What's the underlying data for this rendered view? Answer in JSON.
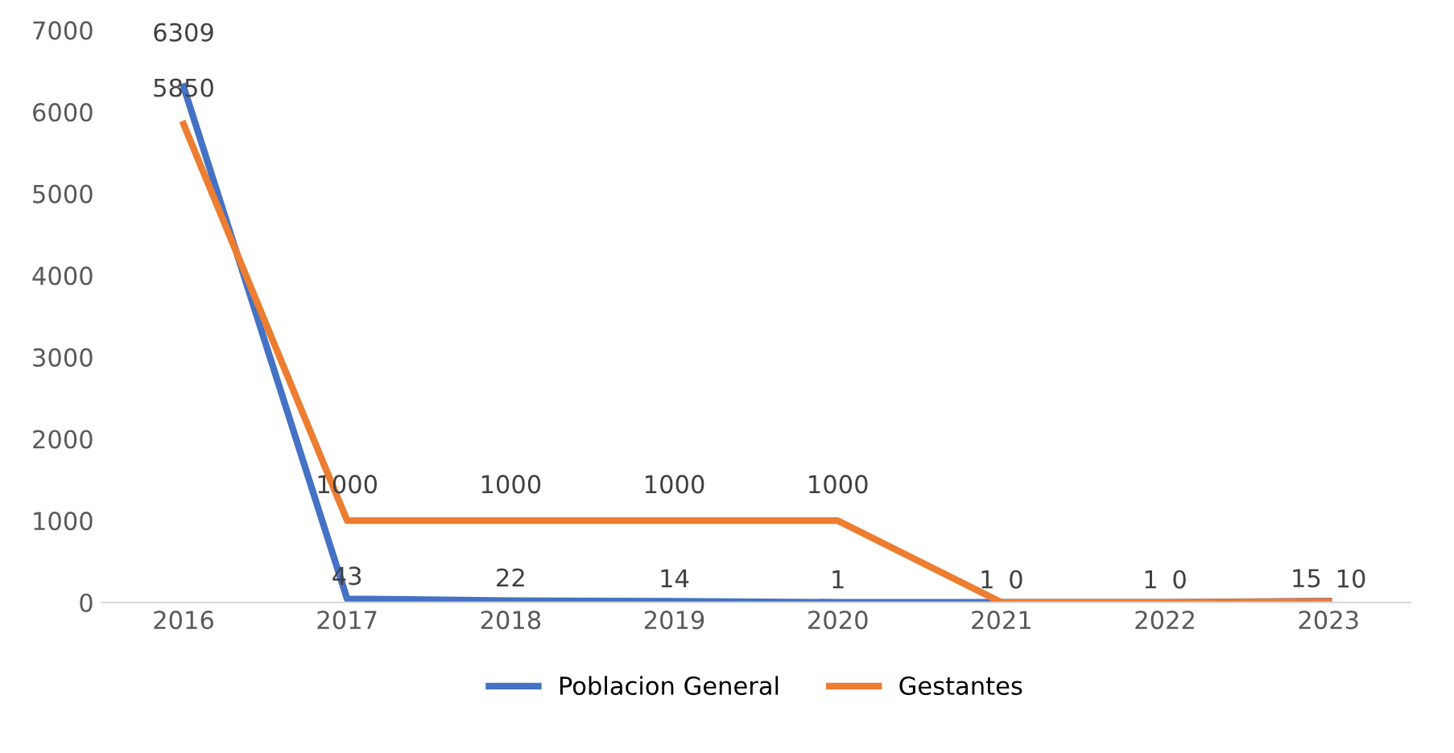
{
  "chart_data": {
    "type": "line",
    "categories": [
      "2016",
      "2017",
      "2018",
      "2019",
      "2020",
      "2021",
      "2022",
      "2023"
    ],
    "series": [
      {
        "name": "Poblacion General",
        "color": "#4472c4",
        "values": [
          6309,
          43,
          22,
          14,
          1,
          1,
          1,
          15
        ]
      },
      {
        "name": "Gestantes",
        "color": "#ed7d31",
        "values": [
          5850,
          1000,
          1000,
          1000,
          1000,
          0,
          0,
          10
        ]
      }
    ],
    "ylim": [
      0,
      7000
    ],
    "yticks": [
      0,
      1000,
      2000,
      3000,
      4000,
      5000,
      6000,
      7000
    ],
    "grid": false,
    "legend": "bottom",
    "data_labels": true,
    "marker": "none",
    "line_style": "solid"
  }
}
